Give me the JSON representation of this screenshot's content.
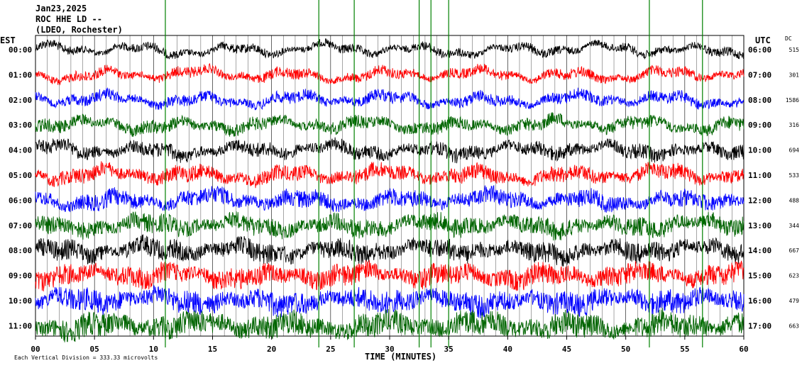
{
  "header": {
    "date": "Jan23,2025",
    "station": "ROC HHE LD --",
    "location": "(LDEO, Rochester)"
  },
  "left_axis_title": "EST",
  "right_axis_title": "UTC",
  "dc_title": "DC",
  "footer": {
    "scale_note": "Each Vertical Division = 333.33 microvolts",
    "xlabel": "TIME (MINUTES)"
  },
  "colors": {
    "black": "#000000",
    "red": "#ff0000",
    "blue": "#0000ff",
    "green": "#006400",
    "spike_green": "#008000"
  },
  "chart_data": {
    "type": "line",
    "xlabel": "TIME (MINUTES)",
    "xlim": [
      0,
      60
    ],
    "x_ticks": [
      "00",
      "05",
      "10",
      "15",
      "20",
      "25",
      "30",
      "35",
      "40",
      "45",
      "50",
      "55",
      "60"
    ],
    "rows": [
      {
        "est": "00:00",
        "utc": "06:00",
        "dc": "515",
        "color": "black"
      },
      {
        "est": "01:00",
        "utc": "07:00",
        "dc": "301",
        "color": "red"
      },
      {
        "est": "02:00",
        "utc": "08:00",
        "dc": "1586",
        "color": "blue"
      },
      {
        "est": "03:00",
        "utc": "09:00",
        "dc": "316",
        "color": "green"
      },
      {
        "est": "04:00",
        "utc": "10:00",
        "dc": "694",
        "color": "black"
      },
      {
        "est": "05:00",
        "utc": "11:00",
        "dc": "533",
        "color": "red"
      },
      {
        "est": "06:00",
        "utc": "12:00",
        "dc": "488",
        "color": "blue"
      },
      {
        "est": "07:00",
        "utc": "13:00",
        "dc": "344",
        "color": "green"
      },
      {
        "est": "08:00",
        "utc": "14:00",
        "dc": "667",
        "color": "black"
      },
      {
        "est": "09:00",
        "utc": "15:00",
        "dc": "623",
        "color": "red"
      },
      {
        "est": "10:00",
        "utc": "16:00",
        "dc": "479",
        "color": "blue"
      },
      {
        "est": "11:00",
        "utc": "17:00",
        "dc": "663",
        "color": "green"
      }
    ],
    "spikes_minutes": [
      11.0,
      24.0,
      27.0,
      32.5,
      33.5,
      35.0,
      52.0,
      56.5
    ]
  }
}
